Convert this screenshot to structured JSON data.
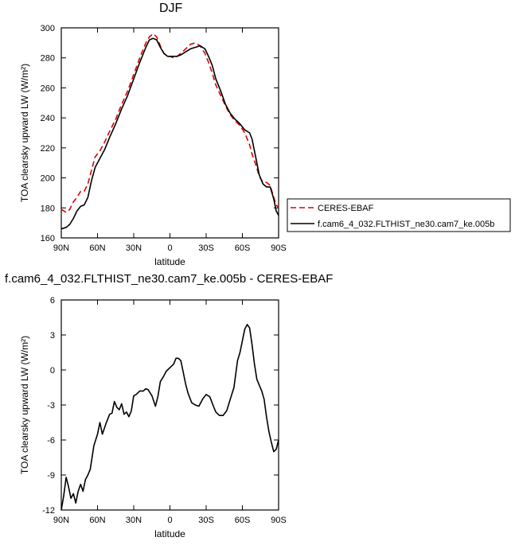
{
  "chart_data": [
    {
      "type": "line",
      "title": "DJF",
      "xlabel": "latitude",
      "ylabel": "TOA clearsky upward LW (W/m²)",
      "x_ticks": [
        90,
        60,
        30,
        0,
        -30,
        -60,
        -90
      ],
      "x_tick_labels": [
        "90N",
        "60N",
        "30N",
        "0",
        "30S",
        "60S",
        "90S"
      ],
      "xlim": [
        90,
        -90
      ],
      "ylim": [
        160,
        300
      ],
      "y_ticks": [
        160,
        180,
        200,
        220,
        240,
        260,
        280,
        300
      ],
      "legend": {
        "placement": "right"
      },
      "series": [
        {
          "name": "CERES-EBAF",
          "color": "#dd0000",
          "dash": true,
          "x": [
            90,
            86,
            83,
            80,
            77,
            74,
            71,
            68,
            65,
            62,
            58,
            54,
            50,
            45,
            40,
            35,
            30,
            25,
            20,
            17,
            14,
            11,
            8,
            5,
            2,
            0,
            -3,
            -6,
            -9,
            -13,
            -17,
            -21,
            -25,
            -29,
            -32,
            -35,
            -38,
            -42,
            -46,
            -50,
            -54,
            -58,
            -62,
            -66,
            -68,
            -71,
            -74,
            -77,
            -80,
            -83,
            -86,
            -88,
            -90
          ],
          "values": [
            179,
            177,
            179,
            184,
            187,
            191,
            191,
            196,
            205,
            214,
            218,
            224,
            231,
            239,
            249,
            258,
            269,
            280,
            290,
            294,
            296,
            294,
            288,
            283,
            281,
            281,
            280,
            281,
            283,
            286,
            289,
            290,
            288,
            283,
            277,
            270,
            262,
            255,
            248,
            242,
            238,
            235,
            230,
            222,
            216,
            209,
            201,
            197,
            197,
            195,
            187,
            182,
            180
          ]
        },
        {
          "name": "f.cam6_4_032.FLTHIST_ne30.cam7_ke.005b",
          "color": "#000000",
          "dash": false,
          "x": [
            90,
            86,
            83,
            80,
            77,
            74,
            71,
            68,
            65,
            62,
            58,
            54,
            50,
            45,
            40,
            35,
            30,
            25,
            20,
            17,
            14,
            11,
            8,
            5,
            2,
            0,
            -3,
            -6,
            -9,
            -13,
            -17,
            -21,
            -25,
            -29,
            -32,
            -35,
            -38,
            -42,
            -46,
            -50,
            -54,
            -58,
            -62,
            -66,
            -68,
            -71,
            -74,
            -77,
            -80,
            -83,
            -86,
            -88,
            -90
          ],
          "values": [
            166,
            167,
            169,
            173,
            178,
            181,
            182,
            187,
            198,
            207,
            213,
            219,
            227,
            236,
            246,
            255,
            266,
            277,
            287,
            292,
            293,
            292,
            287,
            283,
            281,
            281,
            281,
            281,
            282,
            284,
            286,
            287,
            288,
            286,
            281,
            275,
            266,
            258,
            249,
            243,
            239,
            236,
            232,
            230,
            226,
            214,
            202,
            196,
            194,
            194,
            186,
            178,
            175
          ]
        }
      ]
    },
    {
      "type": "line",
      "title": "f.cam6_4_032.FLTHIST_ne30.cam7_ke.005b - CERES-EBAF",
      "xlabel": "latitude",
      "ylabel": "TOA clearsky upward LW (W/m²)",
      "x_ticks": [
        90,
        60,
        30,
        0,
        -30,
        -60,
        -90
      ],
      "x_tick_labels": [
        "90N",
        "60N",
        "30N",
        "0",
        "30S",
        "60S",
        "90S"
      ],
      "xlim": [
        90,
        -90
      ],
      "ylim": [
        -12,
        6
      ],
      "y_ticks": [
        -12,
        -9,
        -6,
        -3,
        0,
        3,
        6
      ],
      "series": [
        {
          "color": "#000000",
          "x": [
            90,
            88,
            86,
            84,
            82,
            80,
            78,
            76,
            74,
            72,
            70,
            68,
            66,
            63,
            60,
            58,
            56,
            53,
            50,
            48,
            46,
            44,
            42,
            40,
            38,
            36,
            34,
            32,
            30,
            28,
            25,
            22,
            20,
            18,
            15,
            12,
            10,
            8,
            5,
            3,
            0,
            -3,
            -5,
            -7,
            -9,
            -11,
            -13,
            -15,
            -18,
            -21,
            -24,
            -27,
            -30,
            -33,
            -36,
            -38,
            -41,
            -44,
            -47,
            -50,
            -53,
            -56,
            -58,
            -60,
            -62,
            -64,
            -66,
            -68,
            -70,
            -72,
            -74,
            -76,
            -78,
            -80,
            -82,
            -84,
            -86,
            -88,
            -90
          ],
          "values": [
            -12,
            -10.8,
            -9.2,
            -10,
            -11,
            -10.6,
            -11.4,
            -10.4,
            -9.8,
            -10.4,
            -9.4,
            -9,
            -8.5,
            -6.5,
            -5.5,
            -4.5,
            -5.5,
            -4.6,
            -3.8,
            -3.7,
            -2.7,
            -3.2,
            -3.4,
            -2.9,
            -3.8,
            -3.6,
            -4,
            -3.5,
            -2.2,
            -2.1,
            -1.8,
            -1.8,
            -1.6,
            -1.7,
            -2.2,
            -3.1,
            -2.3,
            -1,
            -0.5,
            -0.1,
            0.2,
            0.5,
            1,
            1,
            0.8,
            -0.2,
            -1.2,
            -2,
            -2.8,
            -3,
            -3.1,
            -2.5,
            -2.1,
            -2.3,
            -3.1,
            -3.6,
            -3.9,
            -3.9,
            -3.5,
            -2.5,
            -1.5,
            0.8,
            1.5,
            2.5,
            3.5,
            3.9,
            3.6,
            2.2,
            0.5,
            -0.8,
            -1.3,
            -1.8,
            -2.5,
            -4,
            -5.3,
            -6.2,
            -7,
            -6.8,
            -6
          ]
        }
      ]
    }
  ]
}
